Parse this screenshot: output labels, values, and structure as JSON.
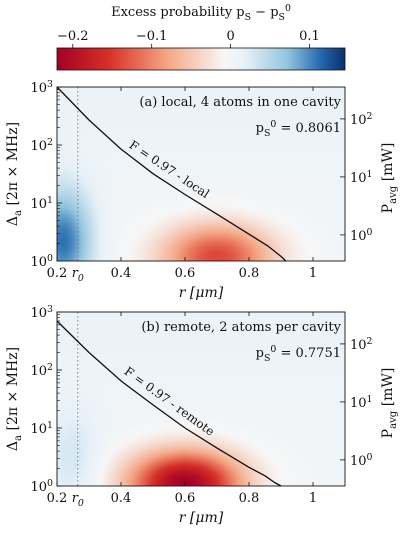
{
  "colorbar": {
    "title": "Excess probability p_S − p_S^0",
    "ticks": [
      "−0.2",
      "−0.1",
      "0",
      "0.1"
    ],
    "tick_values": [
      -0.2,
      -0.1,
      0,
      0.1
    ],
    "range": [
      -0.22,
      0.145
    ],
    "colors": {
      "negative": "#a50026",
      "mid": "#f6f6f6",
      "positive": "#08306b"
    }
  },
  "chart_data": [
    {
      "type": "heatmap",
      "annotation": "(a) local, 4 atoms in one cavity",
      "baseline_label": "p_S^0 = 0.8061",
      "baseline_value": 0.8061,
      "contour_label": "F = 0.97 - local",
      "contour_level": 0.97,
      "contour": {
        "r": [
          0.2,
          0.3,
          0.4,
          0.5,
          0.6,
          0.7,
          0.8,
          0.86,
          0.9,
          0.915
        ],
        "delta": [
          1000,
          270,
          85,
          32,
          14,
          6.4,
          2.9,
          1.8,
          1.2,
          1.0
        ]
      },
      "features": {
        "red_center": [
          0.7,
          1.2
        ],
        "red_min": -0.14,
        "blue_center": [
          0.22,
          2.2
        ],
        "blue_max": 0.11
      },
      "xlabel": "r [μm]",
      "ylabel_left": "Δa [2π × MHz]",
      "ylabel_right": "Pavg [mW]",
      "xlim": [
        0.2,
        1.1
      ],
      "ylim": [
        1,
        1000
      ],
      "xticks": [
        "0.2",
        "0.4",
        "0.6",
        "0.8",
        "1"
      ],
      "xtick_values": [
        0.2,
        0.4,
        0.6,
        0.8,
        1.0
      ],
      "yticks_left": [
        "10^0",
        "10^1",
        "10^2",
        "10^3"
      ],
      "yticks_right": [
        "10^0",
        "10^1",
        "10^2"
      ],
      "r0_label": "r0",
      "r0_value": 0.265,
      "y_scale": "log"
    },
    {
      "type": "heatmap",
      "annotation": "(b) remote, 2 atoms per cavity",
      "baseline_label": "p_S^0 = 0.7751",
      "baseline_value": 0.7751,
      "contour_label": "F = 0.97 - remote",
      "contour_level": 0.97,
      "contour": {
        "r": [
          0.2,
          0.3,
          0.4,
          0.5,
          0.6,
          0.7,
          0.8,
          0.85,
          0.88,
          0.9
        ],
        "delta": [
          700,
          200,
          65,
          25,
          10,
          4.5,
          2.1,
          1.5,
          1.15,
          1.0
        ]
      },
      "features": {
        "red_center": [
          0.6,
          1.1
        ],
        "red_min": -0.22,
        "blue_center": [
          0.25,
          3.0
        ],
        "blue_max": 0.03
      },
      "xlabel": "r [μm]",
      "ylabel_left": "Δa [2π × MHz]",
      "ylabel_right": "Pavg [mW]",
      "xlim": [
        0.2,
        1.1
      ],
      "ylim": [
        1,
        1000
      ],
      "xticks": [
        "0.2",
        "0.4",
        "0.6",
        "0.8",
        "1"
      ],
      "xtick_values": [
        0.2,
        0.4,
        0.6,
        0.8,
        1.0
      ],
      "yticks_left": [
        "10^0",
        "10^1",
        "10^2",
        "10^3"
      ],
      "yticks_right": [
        "10^0",
        "10^1",
        "10^2"
      ],
      "r0_label": "r0",
      "r0_value": 0.265,
      "y_scale": "log"
    }
  ]
}
